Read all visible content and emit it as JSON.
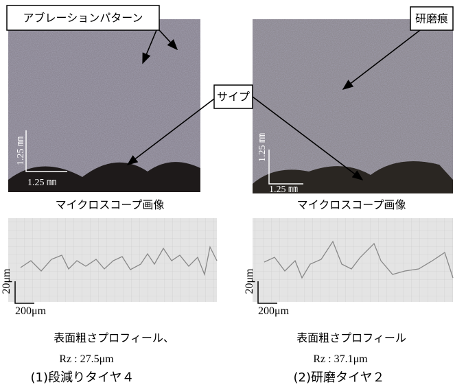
{
  "callouts": {
    "ablation": "アブレーションパターン",
    "polish": "研磨痕",
    "sipe": "サイプ"
  },
  "panels": [
    {
      "scale_v": "1.25 ㎜",
      "scale_h": "1.25 ㎜",
      "micro_caption": "マイクロスコープ画像",
      "profile_scale_v": "20μm",
      "profile_scale_h": "200μm",
      "profile_caption": "表面粗さプロフィール、",
      "rz": "Rz : 27.5μm",
      "label": "(1)段減りタイヤ４"
    },
    {
      "scale_v": "1.25 ㎜",
      "scale_h": "1.25 ㎜",
      "micro_caption": "マイクロスコープ画像",
      "profile_scale_v": "20μm",
      "profile_scale_h": "200μm",
      "profile_caption": "表面粗さプロフィール",
      "rz": "Rz : 37.1μm",
      "label": "(2)研磨タイヤ２"
    }
  ]
}
